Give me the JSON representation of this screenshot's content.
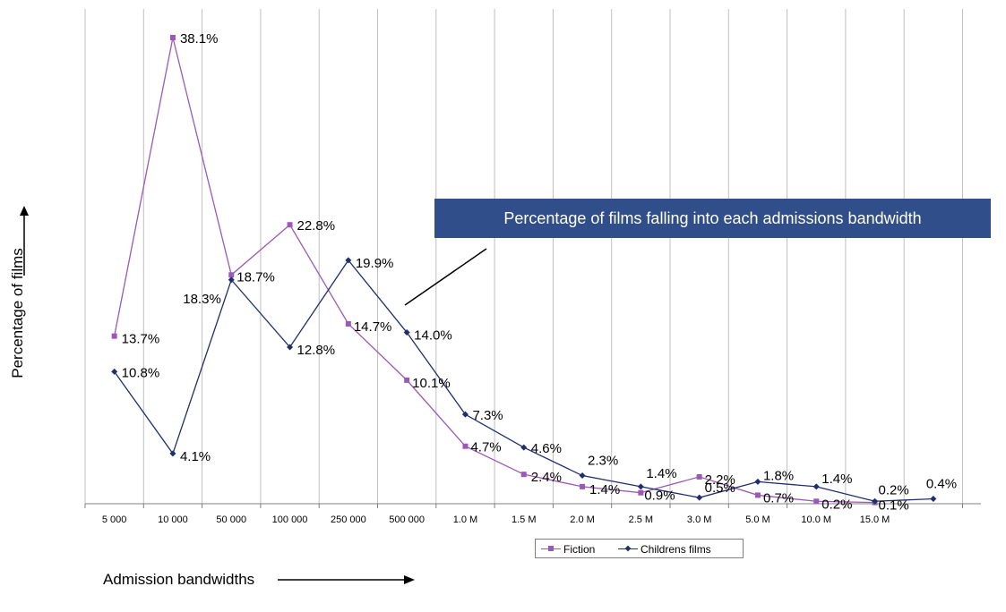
{
  "chart_data": {
    "type": "line",
    "categories": [
      "5 000",
      "10 000",
      "50 000",
      "100 000",
      "250 000",
      "500 000",
      "1.0 M",
      "1.5 M",
      "2.0 M",
      "2.5 M",
      "3.0 M",
      "5.0 M",
      "10.0 M",
      "15.0 M",
      ""
    ],
    "series": [
      {
        "name": "Fiction",
        "color": "#9b59b6",
        "marker": "square",
        "values": [
          13.7,
          38.1,
          18.7,
          22.8,
          14.7,
          10.1,
          4.7,
          2.4,
          1.4,
          0.9,
          2.2,
          0.7,
          0.2,
          0.1,
          null
        ],
        "labels": [
          "13.7%",
          "38.1%",
          "18.7%",
          "22.8%",
          "14.7%",
          "10.1%",
          "4.7%",
          "2.4%",
          "1.4%",
          "0.9%",
          "2.2%",
          "0.7%",
          "0.2%",
          "0.1%",
          ""
        ]
      },
      {
        "name": "Childrens films",
        "color": "#1f2f6e",
        "marker": "diamond",
        "values": [
          10.8,
          4.1,
          18.3,
          12.8,
          19.9,
          14.0,
          7.3,
          4.6,
          2.3,
          1.4,
          0.5,
          1.8,
          1.4,
          0.2,
          0.4
        ],
        "labels": [
          "10.8%",
          "4.1%",
          "18.3%",
          "12.8%",
          "19.9%",
          "14.0%",
          "7.3%",
          "4.6%",
          "2.3%",
          "1.4%",
          "0.5%",
          "1.8%",
          "1.4%",
          "0.2%",
          "0.4%"
        ]
      }
    ],
    "xlabel": "Admission bandwidths",
    "ylabel": "Percentage of films",
    "ylim": [
      0,
      40
    ],
    "grid": "vertical",
    "legend": "bottom",
    "annotation": "Percentage of films falling into each admissions bandwidth"
  }
}
